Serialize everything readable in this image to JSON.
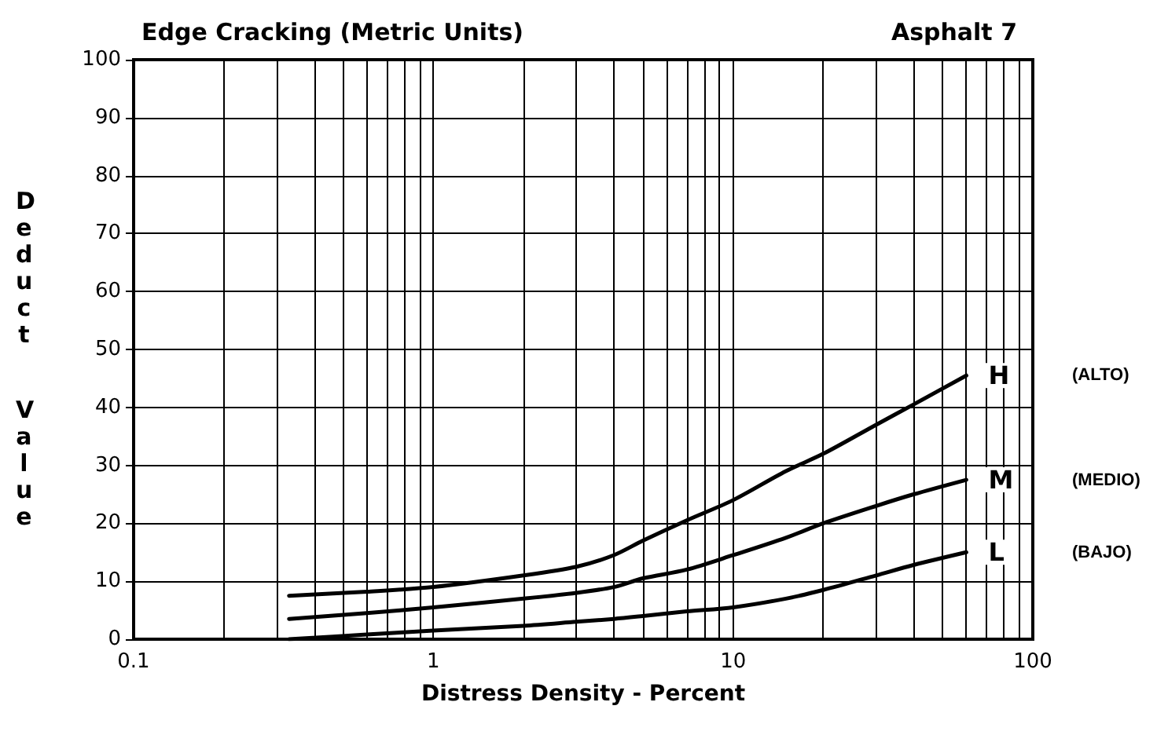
{
  "chart_data": {
    "type": "line",
    "title": "Edge Cracking (Metric Units)",
    "subtitle": "Asphalt 7",
    "xlabel": "Distress Density - Percent",
    "ylabel": "Deduct Value",
    "log": "x",
    "xlim": [
      0.1,
      100
    ],
    "xticks": [
      0.1,
      1,
      10,
      100
    ],
    "ylim": [
      0,
      100
    ],
    "yticks": [
      0,
      10,
      20,
      30,
      40,
      50,
      60,
      70,
      80,
      90,
      100
    ],
    "grid": true,
    "legend": false,
    "marker": "none",
    "line_style": "solid",
    "x": [
      0.33,
      0.6,
      1,
      2,
      3,
      4,
      5,
      7,
      10,
      15,
      20,
      30,
      40,
      60
    ],
    "series": [
      {
        "name": "H",
        "color": "#000000",
        "values": [
          7.5,
          8.2,
          9,
          11,
          12.5,
          14.5,
          17,
          20.5,
          24,
          29,
          32,
          37,
          40.5,
          45.5
        ]
      },
      {
        "name": "M",
        "color": "#000000",
        "values": [
          3.5,
          4.5,
          5.5,
          7,
          8,
          9,
          10.5,
          12,
          14.5,
          17.5,
          20,
          23,
          25,
          27.5
        ]
      },
      {
        "name": "L",
        "color": "#000000",
        "values": [
          0,
          0.8,
          1.5,
          2.3,
          3,
          3.5,
          4,
          4.8,
          5.5,
          7,
          8.5,
          11,
          12.8,
          15
        ]
      }
    ],
    "annotations": [
      "(ALTO)",
      "(MEDIO)",
      "(BAJO)"
    ]
  }
}
